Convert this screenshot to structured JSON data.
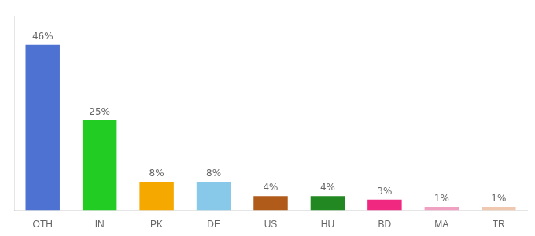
{
  "chart_data": {
    "type": "bar",
    "categories": [
      "OTH",
      "IN",
      "PK",
      "DE",
      "US",
      "HU",
      "BD",
      "MA",
      "TR"
    ],
    "values": [
      46,
      25,
      8,
      8,
      4,
      4,
      3,
      1,
      1
    ],
    "value_labels": [
      "46%",
      "25%",
      "8%",
      "8%",
      "4%",
      "4%",
      "3%",
      "1%",
      "1%"
    ],
    "colors": [
      "#4d72d1",
      "#22cc22",
      "#f5a800",
      "#88c8e8",
      "#b05b1a",
      "#228822",
      "#f02880",
      "#f0a0c0",
      "#f0c8b0"
    ],
    "ylim": [
      0,
      54
    ],
    "data_labels": true,
    "tick_labels": "x",
    "grid": false
  }
}
